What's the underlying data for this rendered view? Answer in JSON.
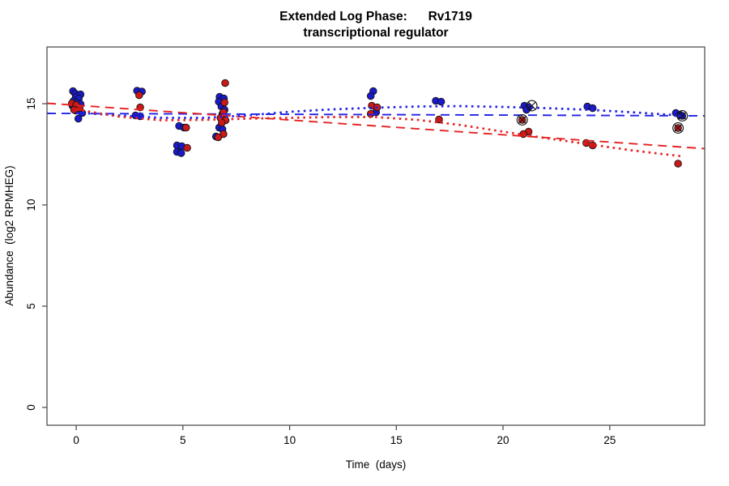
{
  "chart_data": {
    "type": "scatter",
    "title_line1": "Extended Log Phase:      Rv1719",
    "title_line2": "transcriptional regulator",
    "xlabel": "Time  (days)",
    "ylabel": "Abundance  (log2 RPMHEG)",
    "xlim": [
      -1.37,
      29.45
    ],
    "ylim": [
      -0.88,
      17.8
    ],
    "x_ticks": [
      0,
      5,
      10,
      15,
      20,
      25
    ],
    "y_ticks": [
      0,
      5,
      10,
      15
    ],
    "grid": false,
    "legend": "none",
    "colors": {
      "blue_point": "#1a1acc",
      "red_point": "#cc1818",
      "blue_line": "#2222e6",
      "red_line": "#e62222",
      "point_edge": "#101010",
      "marker_outline": "#111111",
      "axis": "#444444"
    },
    "series": [
      {
        "name": "blue",
        "marker": "filled-circle",
        "color_key": "blue_point",
        "points": [
          [
            -0.15,
            15.62
          ],
          [
            -0.05,
            15.5
          ],
          [
            0.2,
            15.46
          ],
          [
            -0.02,
            15.34
          ],
          [
            0.12,
            15.26
          ],
          [
            -0.12,
            15.14
          ],
          [
            0.0,
            15.06
          ],
          [
            0.2,
            14.98
          ],
          [
            -0.18,
            14.9
          ],
          [
            0.06,
            14.82
          ],
          [
            -0.02,
            14.66
          ],
          [
            0.28,
            14.54
          ],
          [
            0.1,
            14.26
          ],
          [
            2.85,
            15.64
          ],
          [
            3.08,
            15.6
          ],
          [
            2.78,
            14.42
          ],
          [
            3.0,
            14.38
          ],
          [
            4.82,
            13.9
          ],
          [
            5.05,
            13.82
          ],
          [
            4.72,
            12.94
          ],
          [
            4.95,
            12.9
          ],
          [
            4.72,
            12.62
          ],
          [
            4.92,
            12.56
          ],
          [
            6.72,
            15.34
          ],
          [
            6.92,
            15.26
          ],
          [
            6.68,
            15.1
          ],
          [
            6.8,
            14.86
          ],
          [
            6.95,
            14.7
          ],
          [
            6.85,
            14.5
          ],
          [
            6.7,
            13.82
          ],
          [
            6.85,
            13.74
          ],
          [
            6.55,
            13.38
          ],
          [
            13.92,
            15.62
          ],
          [
            13.8,
            15.38
          ],
          [
            14.05,
            14.58
          ],
          [
            16.85,
            15.14
          ],
          [
            17.1,
            15.1
          ],
          [
            21.0,
            14.9
          ],
          [
            21.2,
            14.82
          ],
          [
            21.1,
            14.7
          ],
          [
            23.95,
            14.86
          ],
          [
            24.2,
            14.78
          ],
          [
            28.1,
            14.54
          ],
          [
            28.3,
            14.44
          ],
          [
            28.4,
            14.4
          ]
        ]
      },
      {
        "name": "red",
        "marker": "filled-circle",
        "color_key": "red_point",
        "points": [
          [
            -0.2,
            15.02
          ],
          [
            0.0,
            14.94
          ],
          [
            0.16,
            14.78
          ],
          [
            -0.1,
            14.7
          ],
          [
            2.95,
            15.42
          ],
          [
            3.0,
            14.82
          ],
          [
            5.15,
            13.82
          ],
          [
            5.2,
            12.82
          ],
          [
            6.98,
            16.02
          ],
          [
            6.95,
            15.06
          ],
          [
            6.9,
            14.58
          ],
          [
            6.76,
            14.3
          ],
          [
            7.0,
            14.18
          ],
          [
            6.82,
            14.06
          ],
          [
            6.9,
            13.5
          ],
          [
            6.65,
            13.34
          ],
          [
            13.85,
            14.9
          ],
          [
            14.1,
            14.82
          ],
          [
            13.8,
            14.5
          ],
          [
            17.0,
            14.22
          ],
          [
            20.9,
            14.2
          ],
          [
            21.2,
            13.62
          ],
          [
            20.95,
            13.5
          ],
          [
            23.9,
            13.06
          ],
          [
            24.2,
            12.94
          ],
          [
            28.2,
            13.8
          ],
          [
            28.2,
            12.04
          ]
        ]
      }
    ],
    "outlier_cross_markers": {
      "marker": "circle-cross",
      "points": [
        [
          21.35,
          14.9
        ],
        [
          20.9,
          14.2
        ],
        [
          28.4,
          14.4
        ],
        [
          28.2,
          13.8
        ]
      ]
    },
    "fit_lines": [
      {
        "name": "blue-linear-fit",
        "style": "dashed",
        "color_key": "blue_line",
        "x": [
          -1.37,
          29.45
        ],
        "y": [
          14.52,
          14.4
        ]
      },
      {
        "name": "red-linear-fit",
        "style": "dashed",
        "color_key": "red_line",
        "x": [
          -1.37,
          29.45
        ],
        "y": [
          15.02,
          12.78
        ]
      },
      {
        "name": "blue-smooth-fit",
        "style": "dotted",
        "color_key": "blue_line",
        "x": [
          0,
          2,
          4,
          6,
          8,
          10,
          12,
          14,
          16,
          18,
          20,
          22,
          24,
          26,
          28
        ],
        "y": [
          14.56,
          14.42,
          14.3,
          14.3,
          14.42,
          14.6,
          14.72,
          14.8,
          14.86,
          14.88,
          14.84,
          14.78,
          14.7,
          14.58,
          14.44
        ]
      },
      {
        "name": "red-smooth-fit",
        "style": "dotted",
        "color_key": "red_line",
        "x": [
          0,
          2,
          4,
          6,
          8,
          10,
          12,
          14,
          16,
          18,
          20,
          22,
          24,
          26,
          28.4
        ],
        "y": [
          14.72,
          14.36,
          14.18,
          14.2,
          14.26,
          14.3,
          14.34,
          14.34,
          14.2,
          13.95,
          13.62,
          13.3,
          13.0,
          12.7,
          12.4
        ]
      }
    ]
  }
}
